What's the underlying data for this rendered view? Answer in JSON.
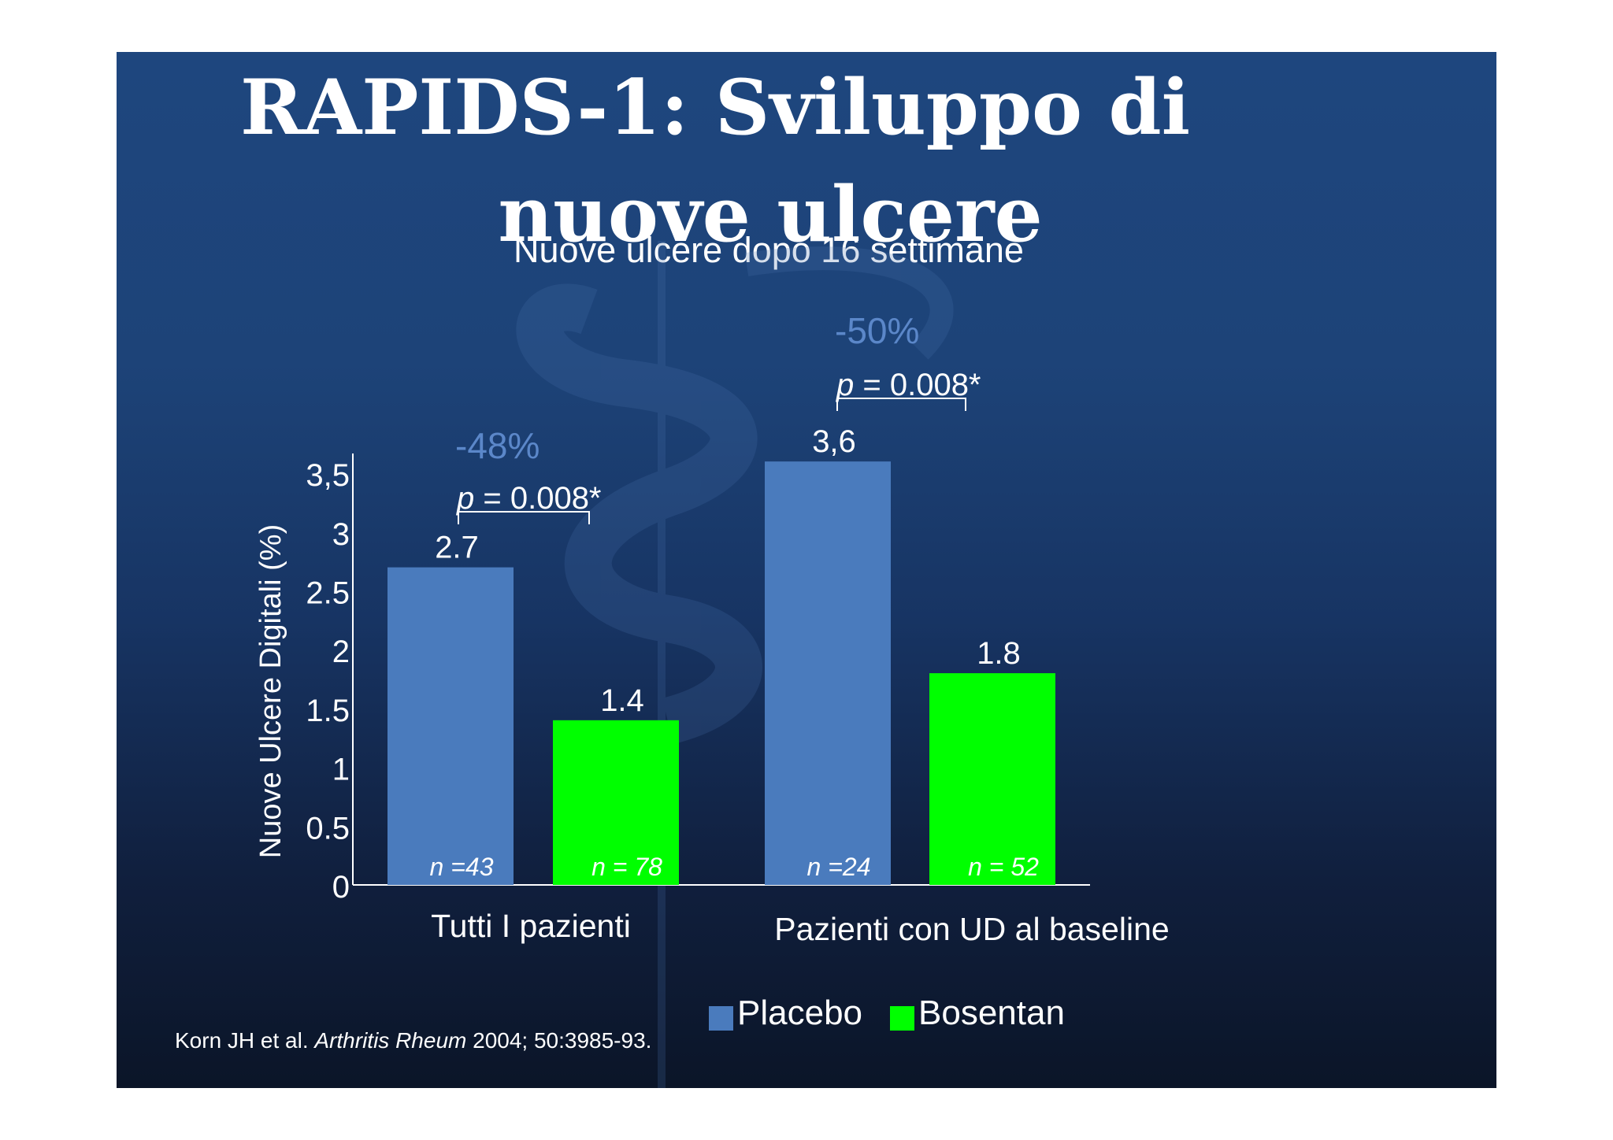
{
  "slide": {
    "title_line1": "RAPIDS-1: Sviluppo di",
    "title_line2": "nuove ulcere",
    "subtitle": "Nuove ulcere dopo 16 settimane",
    "citation": {
      "authors": "Korn JH  et al. ",
      "journal": "Arthritis Rheum",
      "rest": " 2004; 50:3985-93."
    }
  },
  "colors": {
    "placebo": "#4a7bbd",
    "bosentan": "#00ff00",
    "annotation": "#5b87c9",
    "text": "#ffffff"
  },
  "chart_data": {
    "type": "bar",
    "title": "Nuove ulcere dopo 16 settimane",
    "ylabel": "Nuove Ulcere Digitali (%)",
    "xlabel": "",
    "ylim": [
      0,
      3.5
    ],
    "yticks": [
      "0",
      "0.5",
      "1",
      "1.5",
      "2",
      "2.5",
      "3",
      "3,5"
    ],
    "grid": false,
    "legend_position": "bottom",
    "categories": [
      "Tutti I pazienti",
      "Pazienti con UD al baseline"
    ],
    "series": [
      {
        "name": "Placebo",
        "values": [
          2.7,
          3.6
        ],
        "value_labels": [
          "2.7",
          "3,6"
        ],
        "n_labels": [
          "n =43",
          "n =24"
        ]
      },
      {
        "name": "Bosentan",
        "values": [
          1.4,
          1.8
        ],
        "value_labels": [
          "1.4",
          "1.8"
        ],
        "n_labels": [
          "n = 78",
          "n = 52"
        ]
      }
    ],
    "annotations": [
      {
        "percent": "-48%",
        "pvalue_p": "p",
        "pvalue_rest": " = 0.008*"
      },
      {
        "percent": "-50%",
        "pvalue_p": "p",
        "pvalue_rest": " = 0.008*"
      }
    ]
  }
}
